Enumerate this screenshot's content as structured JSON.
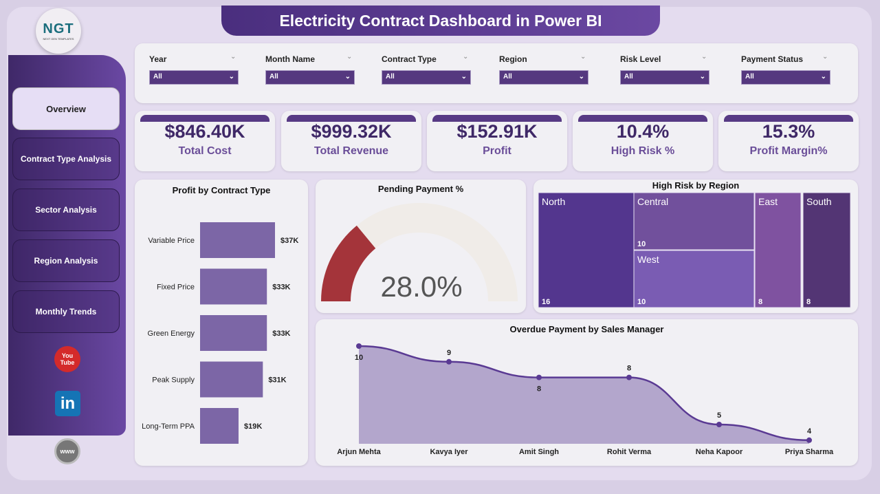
{
  "header": {
    "title": "Electricity Contract Dashboard in Power BI",
    "logo_text": "NGT",
    "logo_sub": "NEXT GEN TEMPLATES"
  },
  "sidebar": {
    "items": [
      {
        "label": "Overview",
        "active": true
      },
      {
        "label": "Contract Type Analysis"
      },
      {
        "label": "Sector Analysis"
      },
      {
        "label": "Region Analysis"
      },
      {
        "label": "Monthly Trends"
      }
    ],
    "social": [
      {
        "icon": "youtube-icon",
        "text": "You Tube"
      },
      {
        "icon": "linkedin-icon",
        "text": "in"
      },
      {
        "icon": "globe-www-icon",
        "text": "www"
      }
    ]
  },
  "filters": [
    {
      "label": "Year",
      "value": "All"
    },
    {
      "label": "Month Name",
      "value": "All"
    },
    {
      "label": "Contract Type",
      "value": "All"
    },
    {
      "label": "Region",
      "value": "All"
    },
    {
      "label": "Risk Level",
      "value": "All"
    },
    {
      "label": "Payment Status",
      "value": "All"
    }
  ],
  "kpis": [
    {
      "value": "$846.40K",
      "label": "Total Cost"
    },
    {
      "value": "$999.32K",
      "label": "Total Revenue"
    },
    {
      "value": "$152.91K",
      "label": "Profit"
    },
    {
      "value": "10.4%",
      "label": "High Risk %"
    },
    {
      "value": "15.3%",
      "label": "Profit Margin%"
    }
  ],
  "colors": {
    "accent": "#573a84",
    "bar": "#7c66a6",
    "gauge_fill": "#a4343a",
    "gauge_bg": "#f0ece8",
    "line": "#5a3a93",
    "area": "#b3a6cc"
  },
  "chart_data": [
    {
      "type": "bar",
      "orientation": "horizontal",
      "title": "Profit by Contract Type",
      "categories": [
        "Variable Price",
        "Fixed Price",
        "Green Energy",
        "Peak Supply",
        "Long-Term PPA"
      ],
      "values": [
        37,
        33,
        33,
        31,
        19
      ],
      "labels": [
        "$37K",
        "$33K",
        "$33K",
        "$31K",
        "$19K"
      ],
      "unit": "K$",
      "xlim": [
        0,
        40
      ]
    },
    {
      "type": "gauge",
      "title": "Pending Payment %",
      "value": 28.0,
      "label": "28.0%",
      "range": [
        0,
        100
      ]
    },
    {
      "type": "treemap",
      "title": "High Risk by Region",
      "items": [
        {
          "name": "North",
          "value": 16,
          "color": "#53368e"
        },
        {
          "name": "Central",
          "value": 10,
          "color": "#71509c"
        },
        {
          "name": "West",
          "value": 10,
          "color": "#7a5cb3"
        },
        {
          "name": "East",
          "value": 8,
          "color": "#7f52a0"
        },
        {
          "name": "South",
          "value": 8,
          "color": "#533574"
        }
      ]
    },
    {
      "type": "area",
      "title": "Overdue Payment by Sales Manager",
      "categories": [
        "Arjun Mehta",
        "Kavya Iyer",
        "Amit Singh",
        "Rohit Verma",
        "Neha Kapoor",
        "Priya Sharma"
      ],
      "values": [
        10,
        9,
        8,
        8,
        5,
        4
      ]
    }
  ]
}
